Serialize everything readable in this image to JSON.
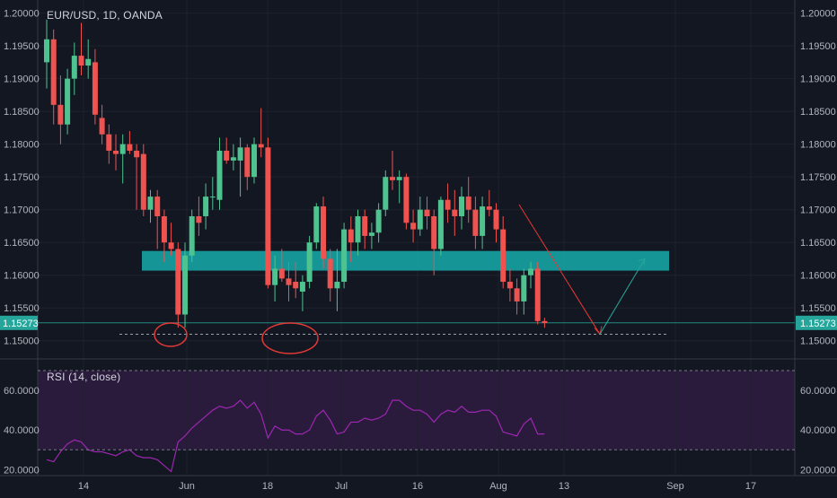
{
  "header": {
    "symbol_label": "EUR/USD, 1D, OANDA"
  },
  "rsi_header": {
    "label": "RSI (14, close)"
  },
  "colors": {
    "background": "#131722",
    "up": "#26a69a",
    "up_fill": "#4fc38f",
    "down": "#ef5350",
    "grid": "#1e222d",
    "zone": "#17b8b8",
    "rsi_line": "#9c27b0",
    "rsi_band": "#2a1b3d",
    "price_tag": "#26a69a",
    "annotation": "#e53935"
  },
  "chart_data": [
    {
      "type": "candlestick",
      "title": "EUR/USD, 1D, OANDA",
      "y_ticks": [
        "1.20000",
        "1.19500",
        "1.19000",
        "1.18500",
        "1.18000",
        "1.17500",
        "1.17000",
        "1.16500",
        "1.16000",
        "1.15500",
        "1.15000"
      ],
      "x_ticks": [
        "14",
        "Jun",
        "18",
        "Jul",
        "16",
        "Aug",
        "13",
        "Sep",
        "17"
      ],
      "ylim": [
        1.1475,
        1.202
      ],
      "last_price": "1.15273",
      "candles": [
        [
          1.1925,
          1.199,
          1.1885,
          1.196
        ],
        [
          1.196,
          1.1975,
          1.183,
          1.186
        ],
        [
          1.186,
          1.1905,
          1.18,
          1.183
        ],
        [
          1.183,
          1.1915,
          1.1815,
          1.19
        ],
        [
          1.19,
          1.1955,
          1.1875,
          1.1935
        ],
        [
          1.1935,
          1.1985,
          1.1905,
          1.192
        ],
        [
          1.192,
          1.196,
          1.19,
          1.193
        ],
        [
          1.1925,
          1.1945,
          1.183,
          1.1845
        ],
        [
          1.184,
          1.186,
          1.18,
          1.1815
        ],
        [
          1.1815,
          1.183,
          1.177,
          1.179
        ],
        [
          1.179,
          1.1815,
          1.176,
          1.1785
        ],
        [
          1.1785,
          1.1815,
          1.174,
          1.18
        ],
        [
          1.18,
          1.182,
          1.1785,
          1.179
        ],
        [
          1.179,
          1.18,
          1.17,
          1.178
        ],
        [
          1.1785,
          1.18,
          1.169,
          1.17
        ],
        [
          1.17,
          1.173,
          1.168,
          1.172
        ],
        [
          1.172,
          1.173,
          1.164,
          1.169
        ],
        [
          1.169,
          1.17,
          1.162,
          1.165
        ],
        [
          1.165,
          1.168,
          1.163,
          1.164
        ],
        [
          1.164,
          1.165,
          1.152,
          1.154
        ],
        [
          1.154,
          1.165,
          1.152,
          1.163
        ],
        [
          1.163,
          1.17,
          1.162,
          1.169
        ],
        [
          1.169,
          1.172,
          1.166,
          1.168
        ],
        [
          1.169,
          1.174,
          1.167,
          1.172
        ],
        [
          1.172,
          1.175,
          1.17,
          1.172
        ],
        [
          1.1715,
          1.181,
          1.17,
          1.179
        ],
        [
          1.179,
          1.181,
          1.177,
          1.1775
        ],
        [
          1.1775,
          1.18,
          1.176,
          1.178
        ],
        [
          1.1775,
          1.181,
          1.172,
          1.1795
        ],
        [
          1.1795,
          1.18,
          1.173,
          1.175
        ],
        [
          1.175,
          1.181,
          1.174,
          1.18
        ],
        [
          1.18,
          1.1855,
          1.178,
          1.1795
        ],
        [
          1.1795,
          1.181,
          1.158,
          1.1585
        ],
        [
          1.1585,
          1.163,
          1.156,
          1.161
        ],
        [
          1.161,
          1.164,
          1.159,
          1.1595
        ],
        [
          1.1595,
          1.162,
          1.156,
          1.1585
        ],
        [
          1.159,
          1.162,
          1.1565,
          1.158
        ],
        [
          1.1575,
          1.16,
          1.1545,
          1.159
        ],
        [
          1.159,
          1.166,
          1.158,
          1.165
        ],
        [
          1.165,
          1.171,
          1.164,
          1.1705
        ],
        [
          1.1705,
          1.172,
          1.161,
          1.1625
        ],
        [
          1.1625,
          1.164,
          1.156,
          1.158
        ],
        [
          1.158,
          1.164,
          1.1545,
          1.159
        ],
        [
          1.159,
          1.168,
          1.158,
          1.167
        ],
        [
          1.167,
          1.169,
          1.162,
          1.165
        ],
        [
          1.165,
          1.17,
          1.163,
          1.169
        ],
        [
          1.169,
          1.17,
          1.164,
          1.166
        ],
        [
          1.166,
          1.168,
          1.164,
          1.1665
        ],
        [
          1.1665,
          1.171,
          1.165,
          1.17
        ],
        [
          1.17,
          1.176,
          1.169,
          1.175
        ],
        [
          1.175,
          1.179,
          1.173,
          1.1745
        ],
        [
          1.1745,
          1.176,
          1.171,
          1.175
        ],
        [
          1.175,
          1.1755,
          1.167,
          1.168
        ],
        [
          1.168,
          1.17,
          1.165,
          1.167
        ],
        [
          1.167,
          1.172,
          1.166,
          1.17
        ],
        [
          1.17,
          1.172,
          1.167,
          1.169
        ],
        [
          1.169,
          1.17,
          1.16,
          1.164
        ],
        [
          1.164,
          1.172,
          1.163,
          1.1715
        ],
        [
          1.1715,
          1.174,
          1.168,
          1.17
        ],
        [
          1.17,
          1.173,
          1.166,
          1.169
        ],
        [
          1.169,
          1.1735,
          1.167,
          1.172
        ],
        [
          1.172,
          1.175,
          1.168,
          1.17
        ],
        [
          1.17,
          1.172,
          1.164,
          1.166
        ],
        [
          1.166,
          1.172,
          1.164,
          1.1705
        ],
        [
          1.1705,
          1.173,
          1.169,
          1.17
        ],
        [
          1.17,
          1.171,
          1.165,
          1.167
        ],
        [
          1.167,
          1.169,
          1.158,
          1.159
        ],
        [
          1.159,
          1.161,
          1.156,
          1.158
        ],
        [
          1.158,
          1.1595,
          1.154,
          1.156
        ],
        [
          1.156,
          1.161,
          1.154,
          1.16
        ],
        [
          1.16,
          1.162,
          1.158,
          1.161
        ],
        [
          1.161,
          1.162,
          1.1525,
          1.153
        ],
        [
          1.153,
          1.1535,
          1.152,
          1.1527
        ]
      ],
      "support_zone": [
        1.1607,
        1.1637
      ],
      "support_line": 1.151,
      "projection_down_from": [
        1.1705,
        1.151
      ],
      "projection_up_to": 1.1625
    },
    {
      "type": "line",
      "title": "RSI (14, close)",
      "y_ticks": [
        "60.0000",
        "40.0000",
        "20.0000"
      ],
      "ylim": [
        17,
        75
      ],
      "band": [
        30,
        70
      ],
      "values": [
        25,
        24,
        29,
        33,
        35,
        34,
        30,
        29,
        29,
        28,
        27,
        29,
        30,
        27,
        26,
        26,
        25,
        22,
        19,
        34,
        37,
        41,
        44,
        47,
        50,
        52,
        51,
        52,
        55,
        51,
        54,
        48,
        36,
        42,
        40,
        40,
        38,
        38,
        40,
        47,
        50,
        45,
        38,
        39,
        44,
        44,
        46,
        45,
        46,
        48,
        55,
        55,
        52,
        50,
        50,
        48,
        44,
        48,
        50,
        49,
        52,
        49,
        49,
        50,
        50,
        47,
        39,
        38,
        37,
        43,
        46,
        38,
        38
      ]
    }
  ]
}
